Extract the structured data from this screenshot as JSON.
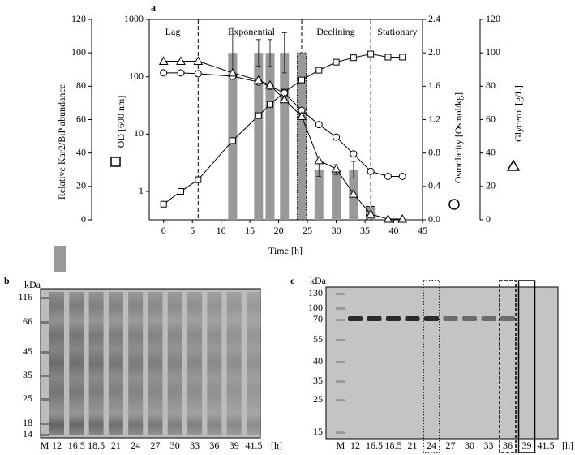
{
  "chart_data": {
    "type": "multi_axis_time_course",
    "panel_label": "a",
    "x_label": "Time [h]",
    "xlim": [
      -2.5,
      45
    ],
    "xticks": [
      0,
      5,
      10,
      15,
      20,
      25,
      30,
      35,
      40,
      45
    ],
    "axes": {
      "kar2": {
        "lim": [
          0,
          120
        ],
        "ticks": [
          0,
          20,
          40,
          60,
          80,
          100,
          120
        ]
      },
      "od": {
        "lim": [
          0.32,
          1000
        ],
        "ticks": [
          1,
          10,
          100,
          1000
        ],
        "log": true
      },
      "osmolarity": {
        "lim": [
          0,
          2.4
        ],
        "ticks": [
          {
            "value": 0,
            "label": "0.0"
          },
          0.4,
          0.8,
          1.2,
          1.6,
          {
            "value": 2,
            "label": "2.0"
          },
          2.4
        ]
      },
      "glycerol": {
        "lim": [
          0,
          120
        ],
        "ticks": [
          0,
          20,
          40,
          60,
          80,
          100,
          120
        ]
      }
    },
    "phases": [
      "Lag",
      "Exponential",
      "Declining",
      "Stationary"
    ],
    "phase_boundaries": [
      6,
      24,
      36
    ],
    "bar_series": {
      "name": "Relative Kar2/BiP abundance",
      "axis": "kar2",
      "color": "#999999",
      "x": [
        12,
        16.5,
        18.5,
        21,
        24,
        27,
        30,
        33,
        36
      ],
      "values": [
        100,
        100,
        100,
        100,
        100,
        30,
        30,
        30,
        8
      ],
      "errors": [
        15,
        8,
        8,
        12,
        null,
        4,
        3,
        5,
        null
      ],
      "outline": [
        null,
        null,
        null,
        null,
        "dotted",
        null,
        null,
        null,
        "dashed"
      ]
    },
    "x": [
      0,
      3,
      6,
      12,
      16.5,
      18.5,
      21,
      24,
      27,
      30,
      33,
      36,
      39,
      41.5
    ],
    "series": [
      {
        "name": "OD [600 nm]",
        "axis": "od",
        "marker": "square",
        "color": "#000000",
        "values": [
          0.6,
          1.0,
          1.6,
          7.7,
          21,
          33,
          54,
          88,
          130,
          180,
          215,
          250,
          220,
          220
        ]
      },
      {
        "name": "Osmolarity [Osmol/kg]",
        "axis": "osmolarity",
        "marker": "circle",
        "color": "#000000",
        "values": [
          1.76,
          1.76,
          1.75,
          1.72,
          1.65,
          1.6,
          1.52,
          1.31,
          1.14,
          0.99,
          0.79,
          0.58,
          0.52,
          0.52
        ]
      },
      {
        "name": "Glycerol [g/L]",
        "axis": "glycerol",
        "marker": "triangle",
        "color": "#000000",
        "values": [
          95,
          95,
          95,
          88,
          83.6,
          80.7,
          72,
          62,
          35.5,
          30.6,
          15.5,
          3.4,
          0.5,
          0.5
        ]
      }
    ]
  },
  "gel_b": {
    "panel_label": "b",
    "kda_label": "kDa",
    "markers": [
      116,
      66,
      45,
      35,
      25,
      18,
      14
    ],
    "lanes": [
      "M",
      "12",
      "16.5",
      "18.5",
      "21",
      "24",
      "27",
      "30",
      "33",
      "36",
      "39",
      "41.5"
    ],
    "unit": "[h]"
  },
  "gel_c": {
    "panel_label": "c",
    "kda_label": "kDa",
    "markers": [
      130,
      100,
      70,
      55,
      40,
      35,
      25,
      15
    ],
    "lanes": [
      "M",
      "12",
      "16.5",
      "18.5",
      "21",
      "24",
      "27",
      "30",
      "33",
      "36",
      "39",
      "41.5"
    ],
    "unit": "[h]"
  }
}
